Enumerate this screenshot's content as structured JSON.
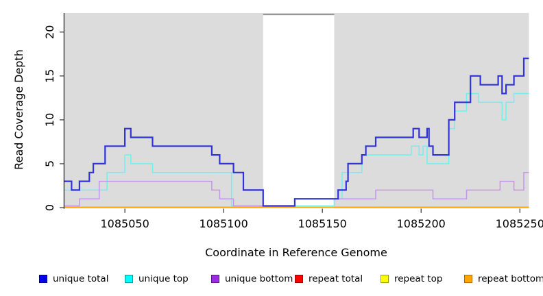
{
  "chart_data": {
    "type": "line",
    "subtype": "step-coverage-plot",
    "title": "",
    "xlabel": "Coordinate in Reference Genome",
    "ylabel": "Read Coverage Depth",
    "xlim": [
      1085019.4,
      1085254.6
    ],
    "ylim": [
      0,
      22.2
    ],
    "x_ticks": [
      "1085050",
      "1085100",
      "1085150",
      "1085200",
      "1085250"
    ],
    "x_tick_values": [
      1085050,
      1085100,
      1085150,
      1085200,
      1085250
    ],
    "y_ticks": [
      "0",
      "5",
      "10",
      "15",
      "20"
    ],
    "y_tick_values": [
      0,
      5,
      10,
      15,
      20
    ],
    "grid": false,
    "legend_position": "bottom",
    "plot_background_color": "#dcdcdc",
    "masked_region": {
      "from": 1085120,
      "to": 1085156,
      "color": "#ffffff",
      "border_color": "#8f8f8f"
    },
    "series": [
      {
        "name": "repeat total",
        "line_color": "#ff0000",
        "width": 1.5,
        "zero_lift": 0,
        "points": [
          [
            1085019,
            0
          ]
        ]
      },
      {
        "name": "repeat top",
        "line_color": "#ffff00",
        "width": 1.5,
        "zero_lift": 0,
        "points": [
          [
            1085019,
            0
          ]
        ]
      },
      {
        "name": "repeat bottom",
        "line_color": "#ffa500",
        "width": 1.6,
        "zero_lift": 0,
        "points": [
          [
            1085019,
            0
          ]
        ]
      },
      {
        "name": "unique top",
        "line_color": "#70efef",
        "width": 1.5,
        "zero_lift": 2,
        "points": [
          [
            1085019,
            2
          ],
          [
            1085041,
            4
          ],
          [
            1085050,
            6
          ],
          [
            1085053,
            5
          ],
          [
            1085064,
            4
          ],
          [
            1085104,
            0
          ],
          [
            1085156,
            1
          ],
          [
            1085160,
            4
          ],
          [
            1085170,
            6
          ],
          [
            1085195,
            7
          ],
          [
            1085199,
            6
          ],
          [
            1085201,
            7
          ],
          [
            1085203,
            5
          ],
          [
            1085214,
            9
          ],
          [
            1085217,
            11
          ],
          [
            1085223,
            13
          ],
          [
            1085229,
            12
          ],
          [
            1085241,
            10
          ],
          [
            1085243,
            12
          ],
          [
            1085247,
            13
          ]
        ]
      },
      {
        "name": "unique bottom",
        "line_color": "#c495e9",
        "width": 1.5,
        "zero_lift": 2,
        "points": [
          [
            1085019,
            0
          ],
          [
            1085027,
            1
          ],
          [
            1085037,
            3
          ],
          [
            1085094,
            2
          ],
          [
            1085098,
            1
          ],
          [
            1085105,
            0
          ],
          [
            1085136,
            1
          ],
          [
            1085177,
            2
          ],
          [
            1085206,
            1
          ],
          [
            1085223,
            2
          ],
          [
            1085240,
            3
          ],
          [
            1085247,
            2
          ],
          [
            1085252,
            4
          ]
        ]
      },
      {
        "name": "unique total",
        "line_color": "#3032dc",
        "width": 2.2,
        "zero_lift": 2,
        "points": [
          [
            1085019,
            3
          ],
          [
            1085023,
            2
          ],
          [
            1085027,
            3
          ],
          [
            1085032,
            4
          ],
          [
            1085034,
            5
          ],
          [
            1085040,
            7
          ],
          [
            1085050,
            9
          ],
          [
            1085053,
            8
          ],
          [
            1085064,
            7
          ],
          [
            1085094,
            6
          ],
          [
            1085098,
            5
          ],
          [
            1085105,
            4
          ],
          [
            1085110,
            2
          ],
          [
            1085120,
            0
          ],
          [
            1085136,
            1
          ],
          [
            1085158,
            2
          ],
          [
            1085162,
            3
          ],
          [
            1085163,
            5
          ],
          [
            1085170,
            6
          ],
          [
            1085172,
            7
          ],
          [
            1085177,
            8
          ],
          [
            1085196,
            9
          ],
          [
            1085199,
            8
          ],
          [
            1085203,
            9
          ],
          [
            1085204,
            7
          ],
          [
            1085206,
            6
          ],
          [
            1085214,
            10
          ],
          [
            1085217,
            12
          ],
          [
            1085225,
            15
          ],
          [
            1085230,
            14
          ],
          [
            1085239,
            15
          ],
          [
            1085241,
            13
          ],
          [
            1085243,
            14
          ],
          [
            1085247,
            15
          ],
          [
            1085252,
            17
          ]
        ]
      }
    ]
  },
  "legend": {
    "items": [
      {
        "label": "unique total",
        "color": "#0000ee",
        "border": "#000099"
      },
      {
        "label": "unique top",
        "color": "#00ffff",
        "border": "#009999"
      },
      {
        "label": "unique bottom",
        "color": "#9a2be2",
        "border": "#5c1788"
      },
      {
        "label": "repeat total",
        "color": "#ff0000",
        "border": "#990000"
      },
      {
        "label": "repeat top",
        "color": "#ffff00",
        "border": "#999900"
      },
      {
        "label": "repeat bottom",
        "color": "#ffa500",
        "border": "#b06c00"
      }
    ]
  }
}
